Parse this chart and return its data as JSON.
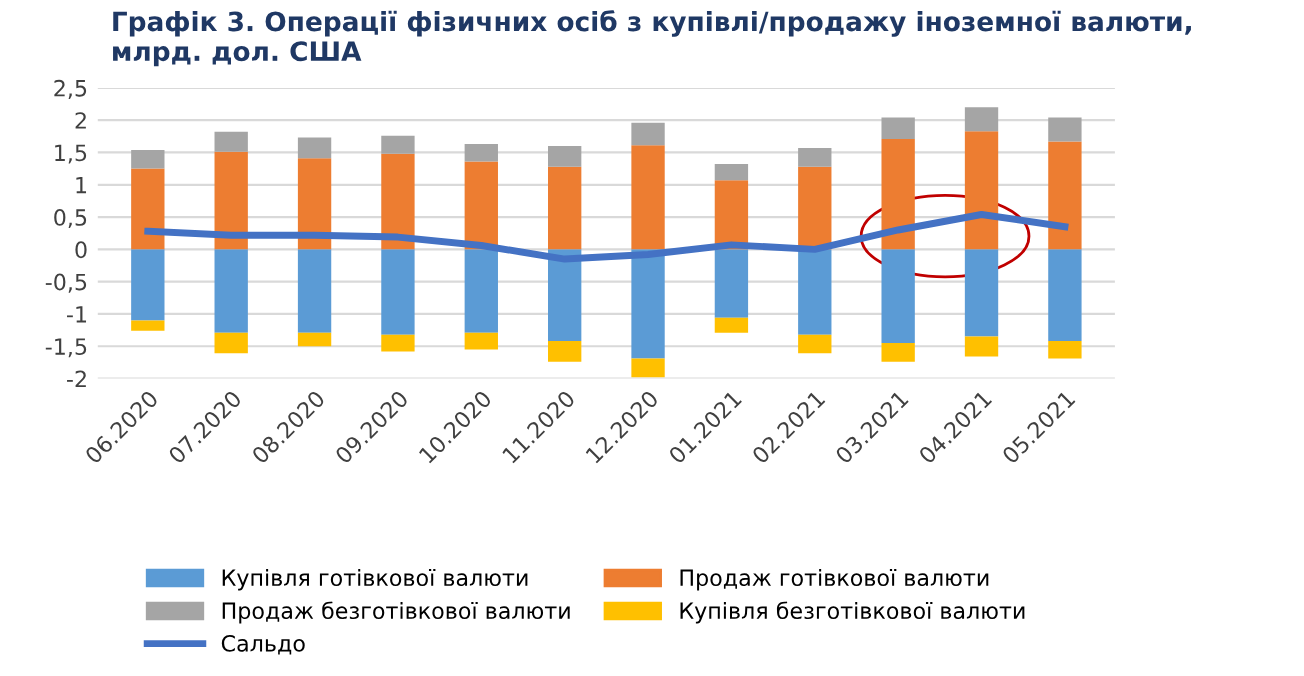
{
  "chart_data": {
    "type": "bar",
    "stacked": true,
    "title": "Графік 3. Операції фізичних осіб з купівлі/продажу іноземної валюти,\nмлрд. дол. США",
    "categories": [
      "06.2020",
      "07.2020",
      "08.2020",
      "09.2020",
      "10.2020",
      "11.2020",
      "12.2020",
      "01.2021",
      "02.2021",
      "03.2021",
      "04.2021",
      "05.2021"
    ],
    "series": [
      {
        "name": "Купівля готівкової валюти",
        "color": "#5b9bd5",
        "values": [
          -1.1,
          -1.29,
          -1.29,
          -1.32,
          -1.29,
          -1.42,
          -1.69,
          -1.06,
          -1.32,
          -1.45,
          -1.35,
          -1.42
        ]
      },
      {
        "name": "Продаж готівкової валюти",
        "color": "#ed7d31",
        "values": [
          1.25,
          1.51,
          1.41,
          1.48,
          1.36,
          1.28,
          1.61,
          1.07,
          1.28,
          1.71,
          1.83,
          1.67
        ]
      },
      {
        "name": "Продаж безготівкової валюти",
        "color": "#a5a5a5",
        "values": [
          0.29,
          0.31,
          0.32,
          0.28,
          0.27,
          0.32,
          0.35,
          0.25,
          0.29,
          0.33,
          0.37,
          0.37
        ]
      },
      {
        "name": "Купівля безготівкової валюти",
        "color": "#ffc000",
        "values": [
          -0.16,
          -0.32,
          -0.21,
          -0.26,
          -0.26,
          -0.32,
          -0.29,
          -0.23,
          -0.29,
          -0.29,
          -0.31,
          -0.27
        ]
      },
      {
        "name": "Сальдо",
        "type": "line",
        "color": "#4472c4",
        "values": [
          0.28,
          0.22,
          0.22,
          0.19,
          0.06,
          -0.15,
          -0.08,
          0.07,
          0.0,
          0.3,
          0.54,
          0.35
        ]
      }
    ],
    "ylim": [
      -2,
      2.5
    ],
    "yticks": [
      {
        "value": -2,
        "label": "-2"
      },
      {
        "value": -1.5,
        "label": "-1,5"
      },
      {
        "value": -1,
        "label": "-1"
      },
      {
        "value": -0.5,
        "label": "-0,5"
      },
      {
        "value": 0,
        "label": "0"
      },
      {
        "value": 0.5,
        "label": "0,5"
      },
      {
        "value": 1,
        "label": "1"
      },
      {
        "value": 1.5,
        "label": "1,5"
      },
      {
        "value": 2,
        "label": "2"
      },
      {
        "value": 2.5,
        "label": "2,5"
      }
    ],
    "grid": "y",
    "legend": "bottom",
    "line_style": "solid",
    "marker": "none"
  }
}
